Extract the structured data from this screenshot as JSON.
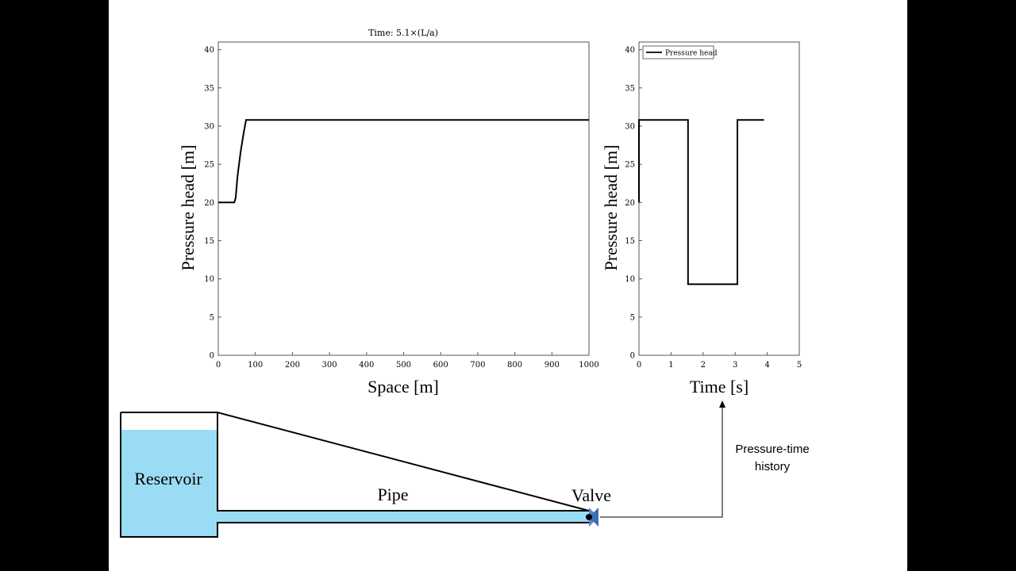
{
  "colors": {
    "water": "#9bdcf5",
    "valve": "#3b6fb6",
    "line": "#000000",
    "background": "#ffffff",
    "margin": "#000000"
  },
  "chart_data": [
    {
      "type": "line",
      "title": "Time: 5.1×(L/a)",
      "xlabel": "Space [m]",
      "ylabel": "Pressure head [m]",
      "xlim": [
        0,
        1000
      ],
      "ylim": [
        0,
        41
      ],
      "xticks": [
        0,
        100,
        200,
        300,
        400,
        500,
        600,
        700,
        800,
        900,
        1000
      ],
      "yticks": [
        0,
        5,
        10,
        15,
        20,
        25,
        30,
        35,
        40
      ],
      "grid": false,
      "series": [
        {
          "x": [
            0,
            43,
            47,
            52,
            60,
            68,
            75,
            1000
          ],
          "y": [
            20.0,
            20.0,
            20.6,
            23.5,
            26.5,
            29.0,
            30.8,
            30.8
          ]
        }
      ]
    },
    {
      "type": "line",
      "title": "",
      "xlabel": "Time [s]",
      "ylabel": "Pressure head [m]",
      "xlim": [
        0,
        5
      ],
      "ylim": [
        0,
        41
      ],
      "xticks": [
        0,
        1,
        2,
        3,
        4,
        5
      ],
      "yticks": [
        0,
        5,
        10,
        15,
        20,
        25,
        30,
        35,
        40
      ],
      "grid": false,
      "legend": "top-left",
      "series": [
        {
          "name": "Pressure head",
          "x": [
            0,
            0,
            1.53,
            1.53,
            3.07,
            3.07,
            3.9
          ],
          "y": [
            20.0,
            30.8,
            30.8,
            9.3,
            9.3,
            30.8,
            30.8
          ]
        }
      ]
    }
  ],
  "diagram": {
    "reservoir_label": "Reservoir",
    "pipe_label": "Pipe",
    "valve_label": "Valve",
    "history_label_line1": "Pressure-time",
    "history_label_line2": "history"
  }
}
